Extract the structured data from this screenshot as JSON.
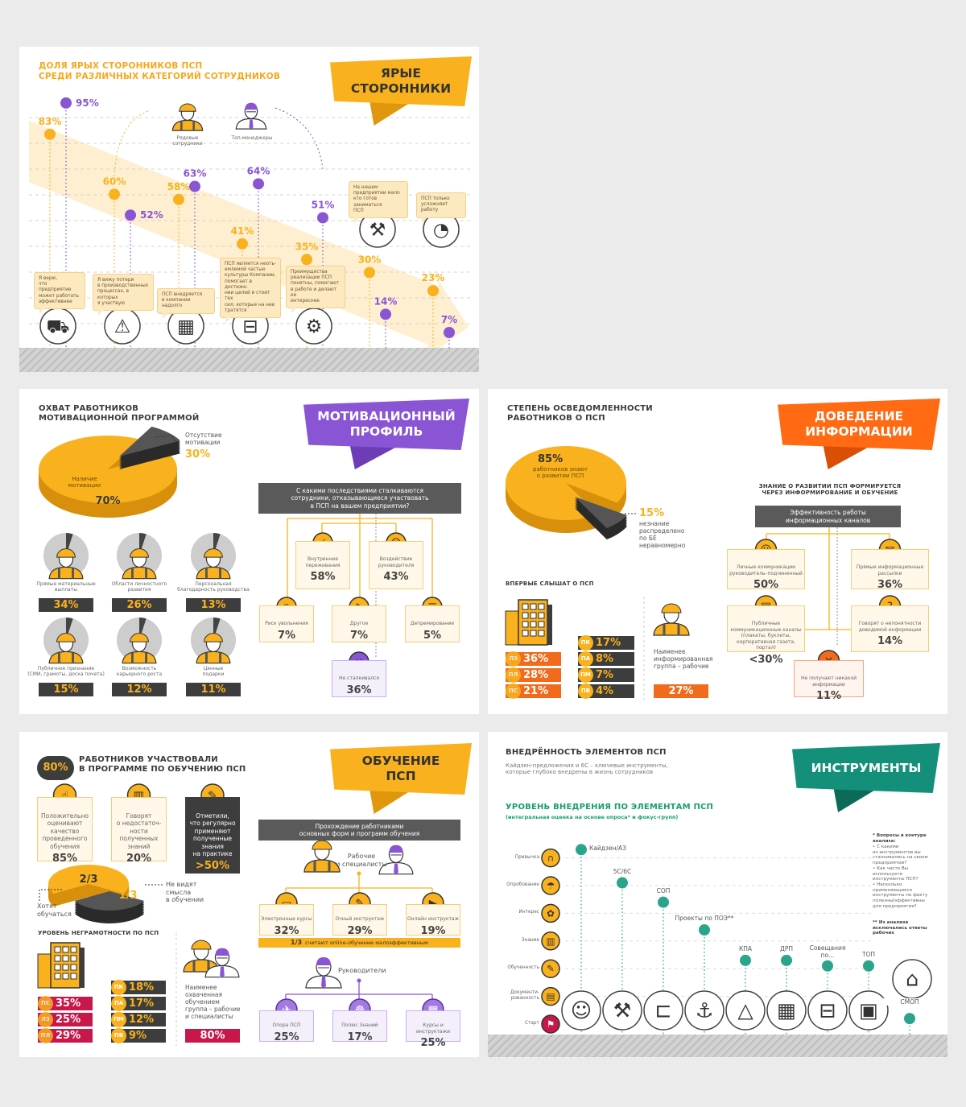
{
  "p1": {
    "title": "ДОЛЯ ЯРЫХ СТОРОННИКОВ ПСП\nСРЕДИ РАЗЛИЧНЫХ КАТЕГОРИЙ СОТРУДНИКОВ",
    "ribbon": "ЯРЫЕ\nСТОРОННИКИ",
    "legend": {
      "workers": "Рядовые\nсотрудники",
      "managers": "Топ-менеджеры"
    },
    "colors": {
      "workers": "#f9b21d",
      "managers": "#8a55d4",
      "band": "#fdefd0"
    }
  },
  "chart_data": [
    {
      "type": "scatter",
      "title": "ДОЛЯ ЯРЫХ СТОРОННИКОВ ПСП СРЕДИ РАЗЛИЧНЫХ КАТЕГОРИЙ СОТРУДНИКОВ",
      "categories": [
        "Я верю,\nчто предприятие\nможет работать\nэффективнее",
        "Я вижу потери\nв производственных\nпроцессах, в которых\nя участвую",
        "ПСП внедряется\nв компании надолго",
        "ПСП является неоть-\nемлемой частью\nкультуры Компании,\nпомогает в достиже-\nнии целей и стоит тех\nсил, которые на нее\nтратятся",
        "Преимущества\nреализации ПСП\nпонятны, помогают\nв работе и делают ее\nинтереснее",
        "На нашем\nпредприятии мало\nкто готов заниматься\nПСП",
        "ПСП только\nусложняет работу"
      ],
      "category_icons": [
        "dump-truck-icon",
        "warning-icon",
        "document-icon",
        "toolbox-icon",
        "gear-icon",
        "excavator-icon",
        "wheelbarrow-icon"
      ],
      "series": [
        {
          "name": "Рядовые сотрудники",
          "values": [
            83,
            60,
            58,
            41,
            35,
            30,
            23
          ]
        },
        {
          "name": "Топ-менеджеры",
          "values": [
            95,
            52,
            63,
            64,
            51,
            14,
            7
          ]
        }
      ],
      "unit": "%",
      "grid": true
    },
    {
      "type": "scatter",
      "title": "УРОВЕНЬ ВНЕДРЕНИЯ ПО ЭЛЕМЕНТАМ ПСП",
      "subtitle": "(интегральная оценка на основе опроса* и фокус-групп)",
      "y_levels": [
        "Старт",
        "Документи-\nрованность",
        "Обученность",
        "Знание",
        "Интерес",
        "Опробование",
        "Привычка"
      ],
      "points": [
        {
          "label": "Кайдзен/АЗ",
          "level": 6.3
        },
        {
          "label": "5С/6С",
          "level": 5.1
        },
        {
          "label": "СОП",
          "level": 4.4
        },
        {
          "label": "Проекты по ПОЭ**",
          "level": 3.4
        },
        {
          "label": "КПА",
          "level": 2.3
        },
        {
          "label": "ДРП",
          "level": 2.3
        },
        {
          "label": "Совещания\nпо...",
          "level": 2.1
        },
        {
          "label": "ТОП",
          "level": 2.1
        },
        {
          "label": "СМОП",
          "level": 0.2
        }
      ],
      "colors": {
        "points": "#2aa58c",
        "levels": "#f9b21d",
        "start": "#c8174a"
      },
      "grid": true
    }
  ],
  "p2": {
    "title": "ОХВАТ РАБОТНИКОВ\nМОТИВАЦИОННОЙ ПРОГРАММОЙ",
    "ribbon": "МОТИВАЦИОННЫЙ\nПРОФИЛЬ",
    "pie": {
      "present_label": "Наличие\nмотивации",
      "present_value": "70%",
      "absent_label": "Отсутствие\nмотивации",
      "absent_value": "30%"
    },
    "motivators": [
      {
        "label": "Прямые материальные\nвыплаты",
        "value": "34%"
      },
      {
        "label": "Области личностного\nразвития",
        "value": "26%"
      },
      {
        "label": "Персональная\nблагодарность руководства",
        "value": "13%"
      },
      {
        "label": "Публичное признание\n(СМИ, грамоты, доска почета)",
        "value": "15%"
      },
      {
        "label": "Возможность\nкарьерного роста",
        "value": "12%"
      },
      {
        "label": "Ценные\nподарки",
        "value": "11%"
      }
    ],
    "flow": {
      "question": "С какими последствиями сталкиваются\nсотрудники, отказывающиеся участвовать\nв ПСП на вашем предприятии?",
      "items": [
        {
          "label": "Внутренние\nпереживания",
          "value": "58%"
        },
        {
          "label": "Воздействие\nруководителя",
          "value": "43%"
        },
        {
          "label": "Риск увольнения",
          "value": "7%"
        },
        {
          "label": "Другое",
          "value": "7%"
        },
        {
          "label": "Депремирование",
          "value": "5%"
        },
        {
          "label": "Не сталкивался",
          "value": "36%"
        }
      ]
    }
  },
  "p3": {
    "title": "СТЕПЕНЬ ОСВЕДОМЛЕННОСТИ\nРАБОТНИКОВ О ПСП",
    "ribbon": "ДОВЕДЕНИЕ\nИНФОРМАЦИИ",
    "pie": {
      "value": "85%",
      "label": "работников знают\nо развитии ПСП",
      "rest_value": "15%",
      "rest_label": "незнание\nраспределено\nпо БЕ\nнеравномерно"
    },
    "first_heard": {
      "title": "ВПЕРВЫЕ СЛЫШАТ О ПСП",
      "orange": [
        {
          "code": "ЛЗ",
          "value": "36%"
        },
        {
          "code": "ПЛ",
          "value": "28%"
        },
        {
          "code": "ПС",
          "value": "21%"
        }
      ],
      "dark": [
        {
          "code": "ПК",
          "value": "17%"
        },
        {
          "code": "ПА",
          "value": "8%"
        },
        {
          "code": "ПМ",
          "value": "7%"
        },
        {
          "code": "ПВ",
          "value": "4%"
        }
      ],
      "note": "Наименее\nинформированная\nгруппа – рабочие",
      "note_value": "27%"
    },
    "channels": {
      "title": "ЗНАНИЕ О РАЗВИТИИ ПСП ФОРМИРУЕТСЯ\nЧЕРЕЗ ИНФОРМИРОВАНИЕ И ОБУЧЕНИЕ",
      "header": "Эффективность работы\nинформационных каналов",
      "items": [
        {
          "label": "Личные коммуникации\nруководитель–подчиненный",
          "value": "50%"
        },
        {
          "label": "Прямые информационные\nрассылки",
          "value": "36%"
        },
        {
          "label": "Публичные\nкоммуникационные каналы\n(плакаты, буклеты,\nкорпоративная газета, портал)",
          "value": "<30%"
        },
        {
          "label": "Говорят о непонятности\nдоводимой информации",
          "value": "14%"
        },
        {
          "label": "Не получают никакой\nинформации",
          "value": "11%"
        }
      ]
    }
  },
  "p4": {
    "badge": "80%",
    "title": "РАБОТНИКОВ УЧАСТВОВАЛИ\nВ ПРОГРАММЕ ПО ОБУЧЕНИЮ ПСП",
    "ribbon": "ОБУЧЕНИЕ\nПСП",
    "boxes": [
      {
        "label": "Положительно\nоценивают\nкачество\nпроведенного\nобучения",
        "value": "85%"
      },
      {
        "label": "Говорят\nо недостаточ-\nности\nполученных\nзнаний",
        "value": "20%"
      },
      {
        "label": "Отметили,\nчто регулярно\nприменяют\nполученные\nзнания\nна практике",
        "value": ">50%"
      }
    ],
    "pie": {
      "big": "2/3",
      "big_label": "Хотят\nобучаться",
      "small": "1/3",
      "small_label": "Не видят\nсмысла\nв обучении"
    },
    "illiteracy": {
      "title": "УРОВЕНЬ НЕГРАМОТНОСТИ ПО ПСП",
      "crimson": [
        {
          "code": "ПС",
          "value": "35%"
        },
        {
          "code": "ЛЗ",
          "value": "25%"
        },
        {
          "code": "ПЛ",
          "value": "29%"
        }
      ],
      "dark": [
        {
          "code": "ПК",
          "value": "18%"
        },
        {
          "code": "ПА",
          "value": "17%"
        },
        {
          "code": "ПМ",
          "value": "12%"
        },
        {
          "code": "ПВ",
          "value": "9%"
        }
      ],
      "note": "Наименее\nохваченная\nобучением\nгруппа – рабочие\nи специалисты",
      "note_value": "80%"
    },
    "training": {
      "header": "Прохождение работниками\nосновных форм и программ обучения",
      "workers_label": "Рабочие\nи специалисты",
      "workers_items": [
        {
          "label": "Электронные курсы",
          "value": "32%"
        },
        {
          "label": "Очный инструктаж",
          "value": "29%"
        },
        {
          "label": "Онлайн инструктаж",
          "value": "19%"
        }
      ],
      "band_value": "1/3",
      "band_text": "считают online-обучение малоэффективным",
      "managers_label": "Руководители",
      "managers_items": [
        {
          "label": "Опора ПСП",
          "value": "25%"
        },
        {
          "label": "Полюс Знаний",
          "value": "17%"
        },
        {
          "label": "Курсы и инструктажи",
          "value": "25%"
        }
      ]
    }
  },
  "p5": {
    "title": "ВНЕДРЁННОСТЬ ЭЛЕМЕНТОВ ПСП",
    "subtitle": "Кайдзен-предложения и 6С – ключевые инструменты,\nкоторые глубоко внедрены в жизнь сотрудников",
    "ribbon": "ИНСТРУМЕНТЫ",
    "chart_title": "УРОВЕНЬ ВНЕДРЕНИЯ ПО ЭЛЕМЕНТАМ ПСП",
    "chart_subtitle": "(интегральная оценка на основе опроса* и фокус-групп)",
    "footnote_head": "* Вопросы в контуре\nанализа:",
    "footnote_body": "• С какими\nиз инструментов вы\nсталкивались на своем\nпредприятии?\n• Как часто Вы\nиспользуете\nинструменты ПСП?\n• Насколько\nприменяющиеся\nинструменты по факту\nполезны/эффективны\nдля предприятия?",
    "footnote2": "** Из анализа\nисключались ответы\nрабочих"
  }
}
